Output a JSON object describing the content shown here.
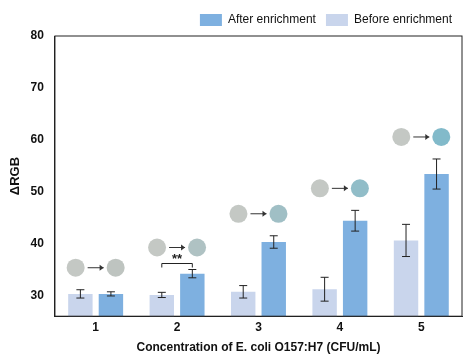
{
  "chart_data": {
    "type": "bar",
    "x_label": "Concentration of E. coli O157:H7 (CFU/mL)",
    "y_label": "ΔRGB",
    "categories": [
      "1",
      "2",
      "3",
      "4",
      "5"
    ],
    "series": [
      {
        "name": "Before enrichment",
        "color": "#c9d5ec",
        "values": [
          30.3,
          30.1,
          30.7,
          31.2,
          40.6
        ],
        "errors": [
          0.8,
          0.5,
          1.2,
          2.3,
          3.1
        ]
      },
      {
        "name": "After enrichment",
        "color": "#7eb0e0",
        "values": [
          30.3,
          34.2,
          40.3,
          44.4,
          53.4
        ],
        "errors": [
          0.4,
          0.8,
          1.2,
          2.0,
          2.9
        ]
      }
    ],
    "annotations": [
      {
        "text": "**",
        "category": "2"
      }
    ],
    "ylim": [
      26,
      80
    ],
    "yticks": [
      30,
      40,
      50,
      60,
      70,
      80
    ],
    "grid": false,
    "legend": "top-right"
  }
}
